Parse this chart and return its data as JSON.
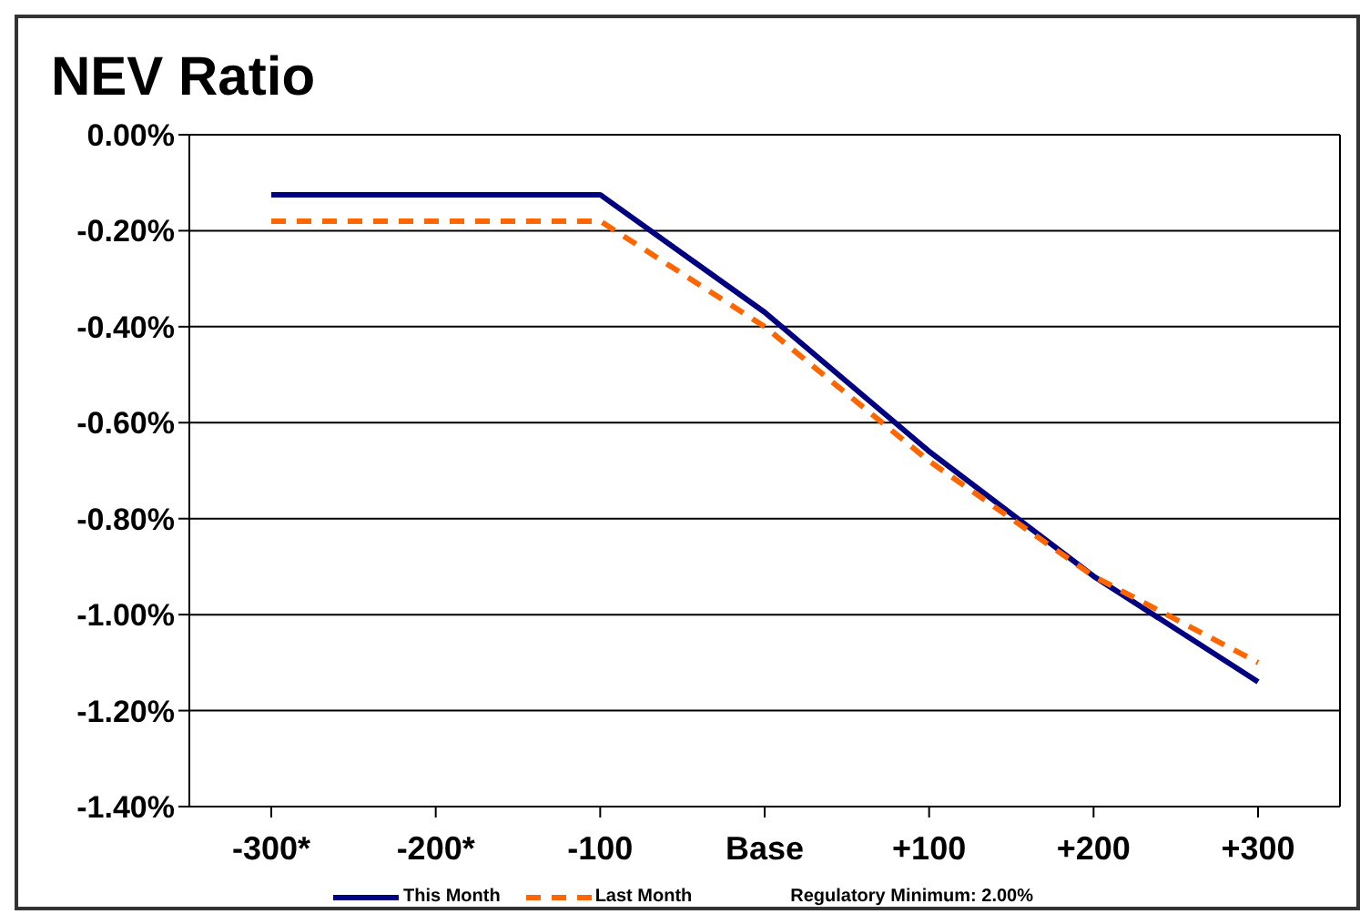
{
  "chart_data": {
    "type": "line",
    "title": "NEV Ratio",
    "categories": [
      "-300*",
      "-200*",
      "-100",
      "Base",
      "+100",
      "+200",
      "+300"
    ],
    "series": [
      {
        "name": "This Month",
        "color": "#000080",
        "values": [
          -0.125,
          -0.125,
          -0.125,
          -0.37,
          -0.66,
          -0.92,
          -1.14
        ],
        "line_style": "solid"
      },
      {
        "name": "Last Month",
        "color": "#ff6600",
        "values": [
          -0.18,
          -0.18,
          -0.18,
          -0.4,
          -0.68,
          -0.92,
          -1.1
        ],
        "line_style": "dashed"
      }
    ],
    "ylim": [
      -1.4,
      0
    ],
    "yticks": [
      {
        "value": 0,
        "label": "0.00%"
      },
      {
        "value": -0.2,
        "label": "-0.20%"
      },
      {
        "value": -0.4,
        "label": "-0.40%"
      },
      {
        "value": -0.6,
        "label": "-0.60%"
      },
      {
        "value": -0.8,
        "label": "-0.80%"
      },
      {
        "value": -1.0,
        "label": "-1.00%"
      },
      {
        "value": -1.2,
        "label": "-1.20%"
      },
      {
        "value": -1.4,
        "label": "-1.40%"
      }
    ],
    "grid": "y",
    "legend": "bottom",
    "marker": "none",
    "annotations": [
      "Regulatory Minimum: 2.00%"
    ]
  }
}
